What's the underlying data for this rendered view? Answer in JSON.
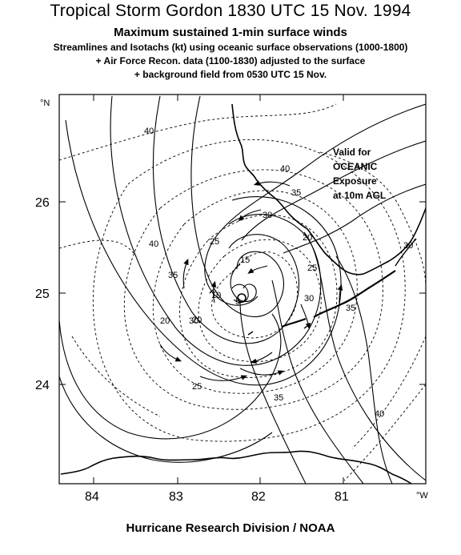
{
  "header": {
    "title": "Tropical Storm Gordon 1830 UTC 15 Nov. 1994",
    "subtitle": "Maximum sustained 1-min surface winds",
    "lines": [
      "Streamlines and Isotachs (kt) using oceanic surface observations (1000-1800)",
      "+ Air Force Recon. data (1100-1830) adjusted to the surface",
      "+ background field from 0530 UTC 15 Nov."
    ]
  },
  "map": {
    "lat_ticks": [
      "26",
      "25",
      "24"
    ],
    "lon_ticks": [
      "84",
      "83",
      "82",
      "81"
    ],
    "n_label": "°N",
    "w_label": "°W",
    "valid_text": [
      "Valid for",
      "OCEANIC",
      "Exposure",
      "at 10m AGL"
    ],
    "isotach_labels": [
      "40",
      "40",
      "35",
      "30",
      "25",
      "20",
      "15",
      "10",
      "5",
      "40",
      "35",
      "30",
      "20",
      "25",
      "30",
      "35",
      "25",
      "35",
      "40",
      "20",
      "30"
    ],
    "colors": {
      "line": "#000000",
      "background": "#ffffff"
    }
  },
  "footer": {
    "text": "Hurricane Research Division / NOAA"
  }
}
